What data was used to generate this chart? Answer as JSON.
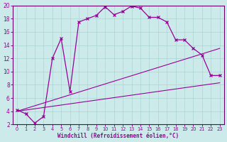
{
  "xlabel": "Windchill (Refroidissement éolien,°C)",
  "background_color": "#cceaea",
  "grid_color": "#aad4d4",
  "line_color": "#990099",
  "spine_color": "#660066",
  "xlim": [
    -0.5,
    23.5
  ],
  "ylim": [
    2,
    20
  ],
  "yticks": [
    2,
    4,
    6,
    8,
    10,
    12,
    14,
    16,
    18,
    20
  ],
  "xticks": [
    0,
    1,
    2,
    3,
    4,
    5,
    6,
    7,
    8,
    9,
    10,
    11,
    12,
    13,
    14,
    15,
    16,
    17,
    18,
    19,
    20,
    21,
    22,
    23
  ],
  "curve1_x": [
    0,
    1,
    2,
    3,
    4,
    5,
    6,
    7,
    8,
    9,
    10,
    11,
    12,
    13,
    14,
    15,
    16,
    17,
    18,
    19,
    20,
    21,
    22,
    23
  ],
  "curve1_y": [
    4.2,
    3.6,
    2.2,
    3.2,
    12.0,
    15.0,
    7.0,
    17.5,
    18.0,
    18.5,
    19.8,
    18.6,
    19.1,
    19.9,
    19.6,
    18.2,
    18.2,
    17.5,
    14.8,
    14.8,
    13.5,
    12.5,
    9.4,
    9.4
  ],
  "curve2_x": [
    0,
    23
  ],
  "curve2_y": [
    4.0,
    13.5
  ],
  "curve3_x": [
    0,
    23
  ],
  "curve3_y": [
    4.0,
    8.3
  ],
  "xlabel_fontsize": 5.5,
  "tick_fontsize_x": 4.8,
  "tick_fontsize_y": 5.5
}
